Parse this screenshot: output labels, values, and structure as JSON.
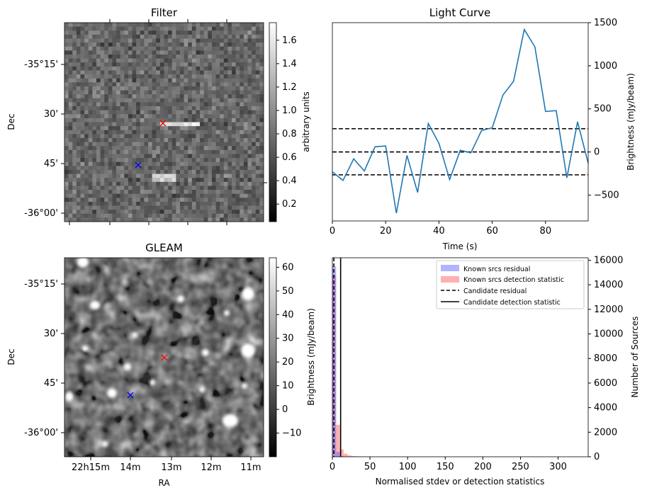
{
  "colors": {
    "curve": "#1f77b4",
    "known_residual": "#6666ff",
    "known_detection": "#ff6f6f",
    "candidate_line": "#000000",
    "marker_candidate": "#ff0000",
    "marker_known": "#0000ff"
  },
  "chart_data": [
    {
      "id": "filter",
      "type": "heatmap",
      "title": "Filter",
      "xlabel": "",
      "ylabel": "Dec",
      "yticks": [
        "-35°15'",
        "30'",
        "45'",
        "-36°00'"
      ],
      "colormap": "gray",
      "colorbar": {
        "label": "arbitrary units",
        "range": [
          0.05,
          1.75
        ],
        "ticks": [
          0.2,
          0.4,
          0.6,
          0.8,
          1.0,
          1.2,
          1.4,
          1.6
        ],
        "tick_labels": [
          "0.2",
          "0.4",
          "0.6",
          "0.8",
          "1.0",
          "1.2",
          "1.4",
          "1.6"
        ]
      },
      "markers": [
        {
          "name": "candidate",
          "symbol": "x",
          "color": "red"
        },
        {
          "name": "known source",
          "symbol": "x",
          "color": "blue"
        }
      ]
    },
    {
      "id": "light_curve",
      "type": "line",
      "title": "Light Curve",
      "xlabel": "Time (s)",
      "ylabel": "Brightness (mJy/beam)",
      "xlim": [
        0,
        96
      ],
      "ylim": [
        -800,
        1500
      ],
      "xticks": [
        0,
        20,
        40,
        60,
        80
      ],
      "yticks": [
        -500,
        0,
        500,
        1000,
        1500
      ],
      "series": [
        {
          "x": [
            0,
            4,
            8,
            12,
            16,
            20,
            24,
            28,
            32,
            36,
            40,
            44,
            48,
            52,
            56,
            60,
            64,
            68,
            72,
            76,
            80,
            84,
            88,
            92,
            96
          ],
          "y": [
            -230,
            -330,
            -80,
            -220,
            60,
            70,
            -710,
            -40,
            -470,
            330,
            100,
            -320,
            20,
            -10,
            250,
            280,
            660,
            820,
            1420,
            1220,
            470,
            480,
            -300,
            350,
            -130
          ]
        }
      ],
      "hlines": [
        {
          "y": 270,
          "style": "dashed"
        },
        {
          "y": 0,
          "style": "dashed"
        },
        {
          "y": -265,
          "style": "dashed"
        }
      ],
      "grid": false
    },
    {
      "id": "gleam",
      "type": "heatmap",
      "title": "GLEAM",
      "xlabel": "RA",
      "ylabel": "Dec",
      "xticks": [
        "22h15m",
        "14m",
        "13m",
        "12m",
        "11m"
      ],
      "yticks": [
        "-35°15'",
        "30'",
        "45'",
        "-36°00'"
      ],
      "colormap": "gray",
      "colorbar": {
        "label": "Brightness (mJy/beam)",
        "range": [
          -20,
          64
        ],
        "ticks": [
          -10,
          0,
          10,
          20,
          30,
          40,
          50,
          60
        ],
        "tick_labels": [
          "−10",
          "0",
          "10",
          "20",
          "30",
          "40",
          "50",
          "60"
        ]
      },
      "markers": [
        {
          "name": "candidate",
          "symbol": "x",
          "color": "red"
        },
        {
          "name": "known source",
          "symbol": "x",
          "color": "blue"
        }
      ]
    },
    {
      "id": "histogram",
      "type": "bar",
      "title": "",
      "xlabel": "Normalised stdev or detection statistics",
      "ylabel": "Number of Sources",
      "xlim": [
        0,
        340
      ],
      "ylim": [
        0,
        16200
      ],
      "xticks": [
        0,
        50,
        100,
        150,
        200,
        250,
        300
      ],
      "yticks": [
        0,
        2000,
        4000,
        6000,
        8000,
        10000,
        12000,
        14000,
        16000
      ],
      "legend": {
        "position": "top-right",
        "entries": [
          "Known srcs residual",
          "Known srcs detection statistic",
          "Candidate residual",
          "Candidate detection statistic"
        ]
      },
      "series": [
        {
          "name": "Known srcs residual",
          "bins": [
            [
              0,
              5,
              15500
            ],
            [
              5,
              10,
              400
            ],
            [
              10,
              15,
              60
            ],
            [
              15,
              20,
              10
            ]
          ]
        },
        {
          "name": "Known srcs detection statistic",
          "bins": [
            [
              0,
              5,
              14800
            ],
            [
              5,
              10,
              2600
            ],
            [
              10,
              15,
              600
            ],
            [
              15,
              20,
              250
            ],
            [
              20,
              25,
              120
            ],
            [
              25,
              30,
              60
            ],
            [
              30,
              35,
              40
            ],
            [
              35,
              40,
              30
            ],
            [
              40,
              50,
              25
            ],
            [
              50,
              60,
              20
            ],
            [
              60,
              70,
              15
            ],
            [
              70,
              80,
              12
            ],
            [
              80,
              90,
              10
            ],
            [
              90,
              100,
              12
            ],
            [
              100,
              110,
              15
            ],
            [
              110,
              120,
              8
            ],
            [
              120,
              130,
              6
            ],
            [
              130,
              140,
              6
            ],
            [
              140,
              150,
              8
            ],
            [
              150,
              160,
              6
            ],
            [
              160,
              170,
              5
            ],
            [
              170,
              180,
              5
            ],
            [
              180,
              190,
              4
            ],
            [
              190,
              200,
              10
            ],
            [
              200,
              210,
              8
            ],
            [
              210,
              220,
              4
            ],
            [
              220,
              230,
              3
            ],
            [
              230,
              240,
              3
            ],
            [
              240,
              250,
              2
            ],
            [
              250,
              260,
              2
            ],
            [
              260,
              270,
              2
            ],
            [
              270,
              280,
              2
            ],
            [
              280,
              290,
              1
            ],
            [
              290,
              300,
              1
            ],
            [
              320,
              330,
              8
            ]
          ]
        }
      ],
      "vlines": [
        {
          "name": "Candidate residual",
          "x": 2,
          "style": "dashed"
        },
        {
          "name": "Candidate detection statistic",
          "x": 11,
          "style": "solid"
        }
      ]
    }
  ]
}
